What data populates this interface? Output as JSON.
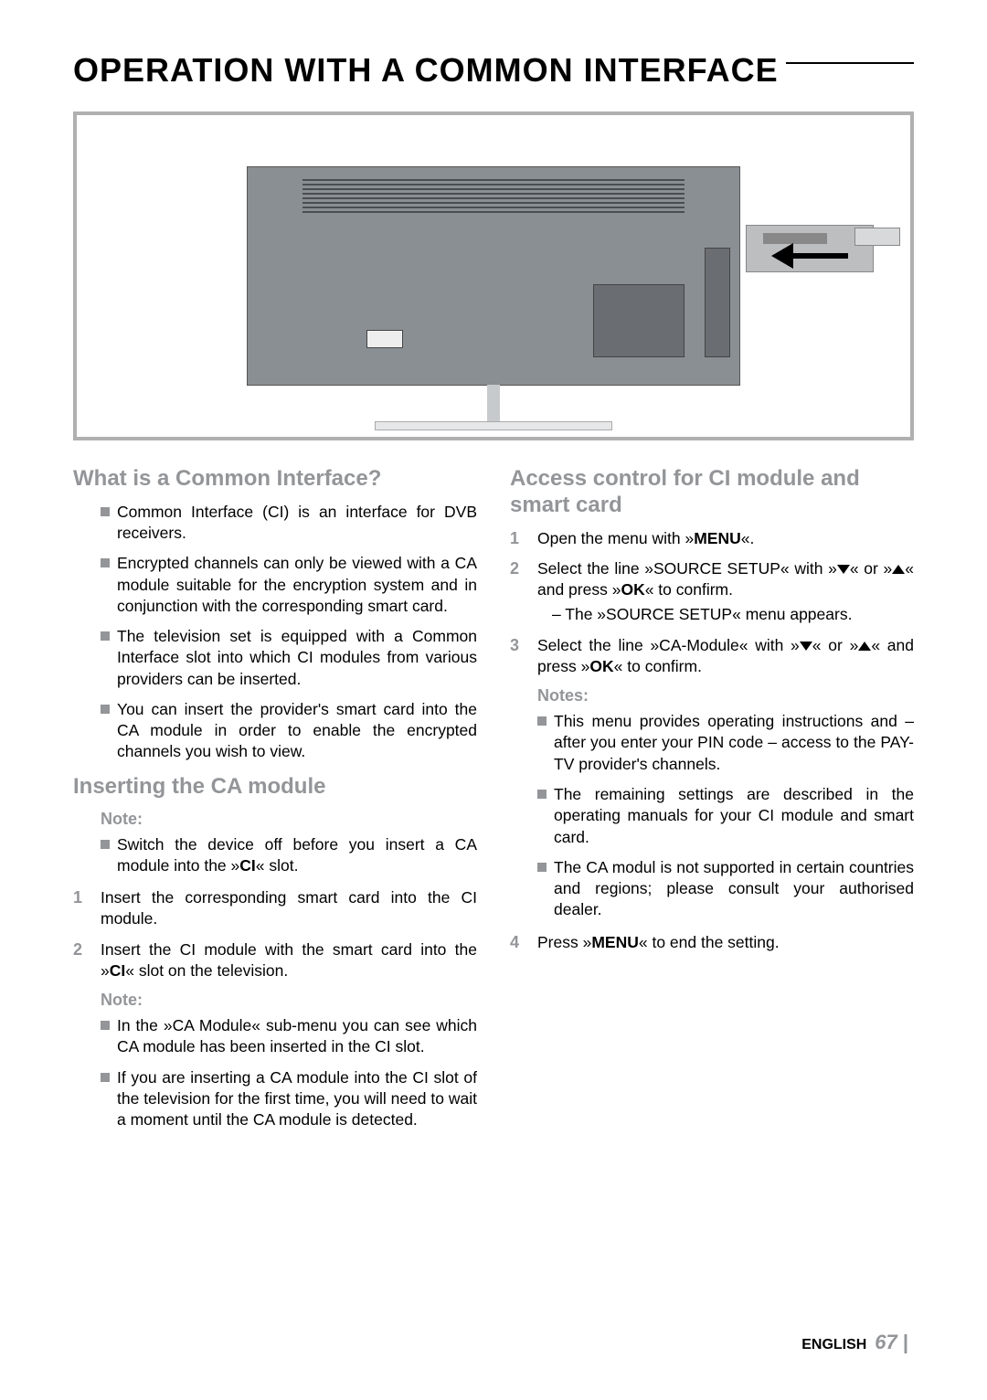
{
  "chapter_title": "OPERATION WITH A COMMON INTERFACE",
  "colors": {
    "heading_gray": "#939598",
    "bullet_gray": "#939598",
    "body_text": "#000000",
    "diagram_border": "#b0b0b0",
    "tv_body": "#8a8f94",
    "background": "#ffffff"
  },
  "typography": {
    "chapter_fontsize": 36,
    "section_fontsize": 24,
    "sub_fontsize": 18,
    "body_fontsize": 17.5
  },
  "left_column": {
    "section1": {
      "title": "What is a Common Interface?",
      "bullets": [
        "Common Interface (CI) is an interface for DVB receivers.",
        "Encrypted channels can only be viewed with a CA module suitable for the encryption system and in conjunction with the corresponding smart card.",
        "The television set is equipped with a Common Interface slot into which CI modules from various providers can be inserted.",
        "You can insert the provider's smart card into the CA module in order to enable the encrypted channels you wish to view."
      ]
    },
    "section2": {
      "title": "Inserting the CA module",
      "note_label": "Note:",
      "note1_bullets": [
        {
          "pre": "Switch the device off before you insert a CA module into the »",
          "b": "CI",
          "post": "« slot."
        }
      ],
      "steps": [
        "Insert the corresponding smart card into the CI module.",
        {
          "pre": "Insert the CI module with the smart card into the »",
          "b": "CI",
          "post": "« slot on the television."
        }
      ],
      "note2_bullets": [
        "In the »CA Module« sub-menu you can see which CA module has been inserted in the CI slot.",
        "If you are inserting a CA module into the CI slot of the television for the first time, you will need to wait a moment until the CA module is detected."
      ]
    }
  },
  "right_column": {
    "section3": {
      "title": "Access control for CI module and smart card",
      "steps": {
        "s1": {
          "pre": "Open the menu with »",
          "b": "MENU",
          "post": "«."
        },
        "s2": {
          "pre": "Select the line »SOURCE SETUP« with »",
          "mid1": "« or »",
          "mid2": "« and press »",
          "b2": "OK",
          "post": "« to confirm.",
          "sub": "– The »SOURCE SETUP« menu appears."
        },
        "s3": {
          "pre": "Select the line »CA-Module« with »",
          "mid1": "« or »",
          "mid2": "« and press »",
          "b2": "OK",
          "post": "« to confirm."
        }
      },
      "notes_label": "Notes:",
      "notes_bullets": [
        "This menu provides operating instructions and – after you enter your PIN code – access to the PAY-TV provider's channels.",
        "The remaining settings are described in the operating manuals for your CI module and smart card.",
        "The CA modul is not supported in certain countries and regions; please consult your authorised dealer."
      ],
      "step4": {
        "pre": "Press »",
        "b": "MENU",
        "post": "« to end the setting."
      }
    }
  },
  "footer": {
    "language": "ENGLISH",
    "page_num": "67"
  }
}
